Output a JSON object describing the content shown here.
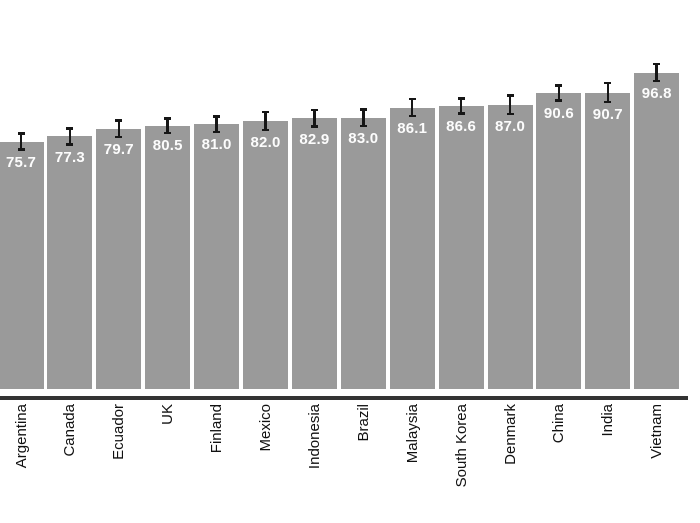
{
  "chart_data": {
    "type": "bar",
    "title": "",
    "xlabel": "",
    "ylabel": "",
    "categories": [
      "Argentina",
      "Canada",
      "Ecuador",
      "UK",
      "Finland",
      "Mexico",
      "Indonesia",
      "Brazil",
      "Malaysia",
      "South Korea",
      "Denmark",
      "China",
      "India",
      "Vietnam"
    ],
    "values": [
      75.7,
      77.3,
      79.7,
      80.5,
      81.0,
      82.0,
      82.9,
      83.0,
      86.1,
      86.6,
      87.0,
      90.6,
      90.7,
      96.8
    ],
    "value_labels": [
      "75.7",
      "77.3",
      "79.7",
      "80.5",
      "81.0",
      "82.0",
      "82.9",
      "83.0",
      "86.1",
      "86.6",
      "87.0",
      "90.6",
      "90.7",
      "96.8"
    ],
    "errors": [
      2.8,
      2.8,
      2.9,
      2.6,
      2.8,
      3.1,
      2.9,
      2.9,
      3.0,
      2.7,
      3.2,
      2.7,
      3.3,
      3.0
    ],
    "ylim": [
      0,
      119
    ],
    "grid": false,
    "legend": "none",
    "bar_color": "#9a9a9a",
    "error_bar_color": "#161616",
    "value_label_color": "#fcfcfc",
    "axis_line_color": "#333333",
    "tick_label_color": "#111111",
    "background_color": "#ffffff"
  }
}
